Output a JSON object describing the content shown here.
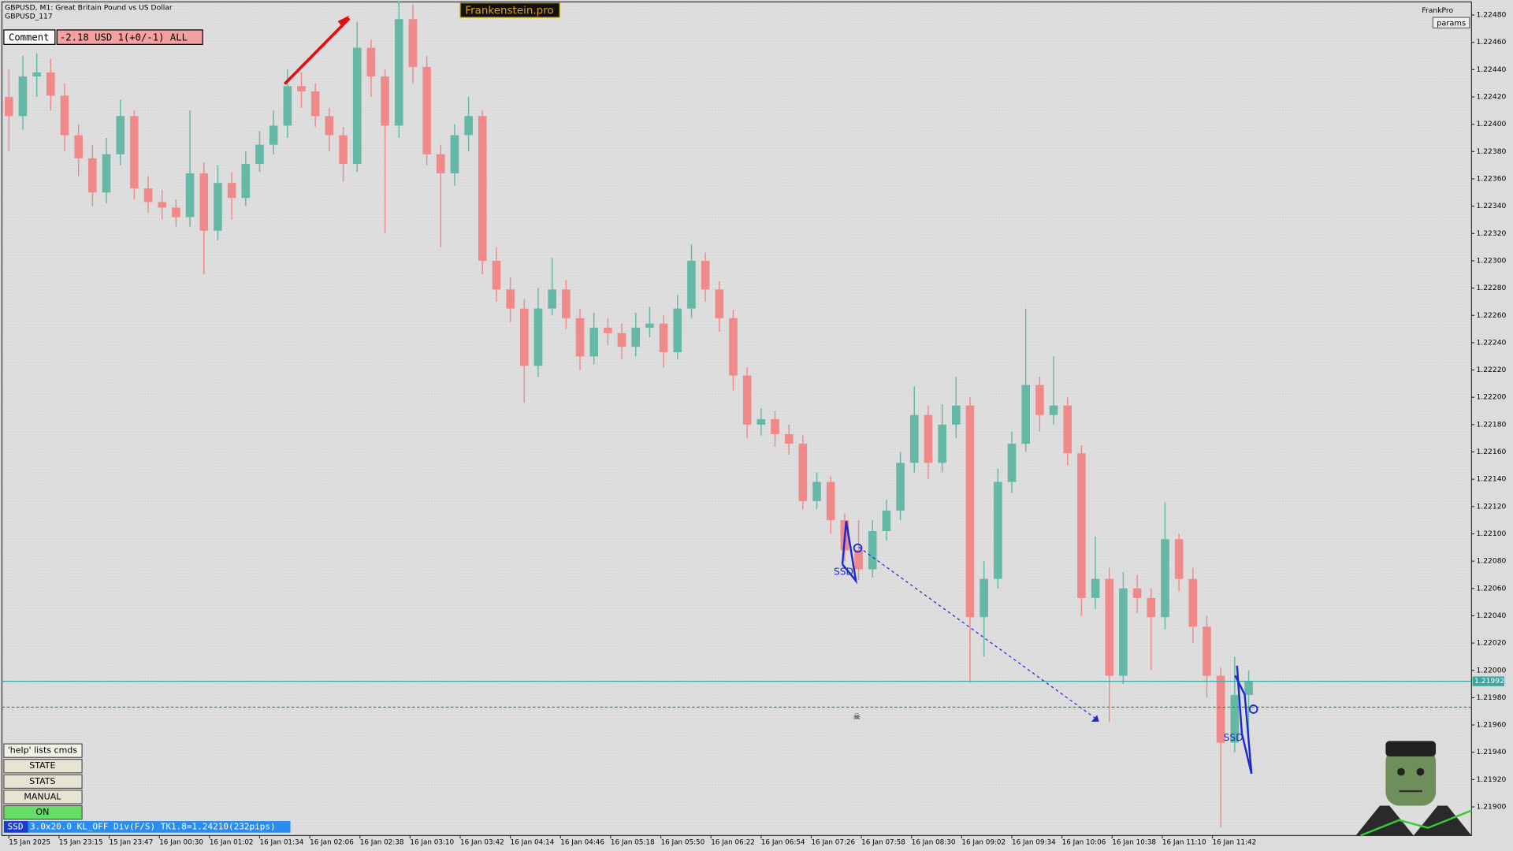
{
  "chart_data": {
    "type": "candlestick",
    "up_color": "#66b8a6",
    "down_color": "#f08a8a",
    "grid": false,
    "ylim": [
      1.21879,
      1.22491
    ],
    "yticks": [
      {
        "value": 1.219,
        "label": "1.21900"
      },
      {
        "value": 1.2192,
        "label": "1.21920"
      },
      {
        "value": 1.2194,
        "label": "1.21940"
      },
      {
        "value": 1.2196,
        "label": "1.21960"
      },
      {
        "value": 1.2198,
        "label": "1.21980"
      },
      {
        "value": 1.22,
        "label": "1.22000"
      },
      {
        "value": 1.2202,
        "label": "1.22020"
      },
      {
        "value": 1.2204,
        "label": "1.22040"
      },
      {
        "value": 1.2206,
        "label": "1.22060"
      },
      {
        "value": 1.2208,
        "label": "1.22080"
      },
      {
        "value": 1.221,
        "label": "1.22100"
      },
      {
        "value": 1.2212,
        "label": "1.22120"
      },
      {
        "value": 1.2214,
        "label": "1.22140"
      },
      {
        "value": 1.2216,
        "label": "1.22160"
      },
      {
        "value": 1.2218,
        "label": "1.22180"
      },
      {
        "value": 1.222,
        "label": "1.22200"
      },
      {
        "value": 1.2222,
        "label": "1.22220"
      },
      {
        "value": 1.2224,
        "label": "1.22240"
      },
      {
        "value": 1.2226,
        "label": "1.22260"
      },
      {
        "value": 1.2228,
        "label": "1.22280"
      },
      {
        "value": 1.223,
        "label": "1.22300"
      },
      {
        "value": 1.2232,
        "label": "1.22320"
      },
      {
        "value": 1.2234,
        "label": "1.22340"
      },
      {
        "value": 1.2236,
        "label": "1.22360"
      },
      {
        "value": 1.2238,
        "label": "1.22380"
      },
      {
        "value": 1.224,
        "label": "1.22400"
      },
      {
        "value": 1.2242,
        "label": "1.22420"
      },
      {
        "value": 1.2244,
        "label": "1.22440"
      },
      {
        "value": 1.2246,
        "label": "1.22460"
      },
      {
        "value": 1.2248,
        "label": "1.22480"
      }
    ],
    "xlim": [
      -0.5,
      105
    ],
    "xticks": [
      {
        "value": 0,
        "label": "15 Jan 2025"
      },
      {
        "value": 3.6,
        "label": "15 Jan 23:15"
      },
      {
        "value": 7.2,
        "label": "15 Jan 23:47"
      },
      {
        "value": 10.8,
        "label": "16 Jan 00:30"
      },
      {
        "value": 14.4,
        "label": "16 Jan 01:02"
      },
      {
        "value": 18,
        "label": "16 Jan 01:34"
      },
      {
        "value": 21.6,
        "label": "16 Jan 02:06"
      },
      {
        "value": 25.2,
        "label": "16 Jan 02:38"
      },
      {
        "value": 28.8,
        "label": "16 Jan 03:10"
      },
      {
        "value": 32.4,
        "label": "16 Jan 03:42"
      },
      {
        "value": 36,
        "label": "16 Jan 04:14"
      },
      {
        "value": 39.6,
        "label": "16 Jan 04:46"
      },
      {
        "value": 43.2,
        "label": "16 Jan 05:18"
      },
      {
        "value": 46.8,
        "label": "16 Jan 05:50"
      },
      {
        "value": 50.4,
        "label": "16 Jan 06:22"
      },
      {
        "value": 54,
        "label": "16 Jan 06:54"
      },
      {
        "value": 57.6,
        "label": "16 Jan 07:26"
      },
      {
        "value": 61.2,
        "label": "16 Jan 07:58"
      },
      {
        "value": 64.8,
        "label": "16 Jan 08:30"
      },
      {
        "value": 68.4,
        "label": "16 Jan 09:02"
      },
      {
        "value": 72,
        "label": "16 Jan 09:34"
      },
      {
        "value": 75.6,
        "label": "16 Jan 10:06"
      },
      {
        "value": 79.2,
        "label": "16 Jan 10:38"
      },
      {
        "value": 82.8,
        "label": "16 Jan 11:10"
      },
      {
        "value": 86.4,
        "label": "16 Jan 11:42"
      }
    ],
    "open": [
      1.2242,
      1.22406,
      1.22435,
      1.22438,
      1.22421,
      1.22392,
      1.22375,
      1.2235,
      1.22378,
      1.22406,
      1.22353,
      1.22343,
      1.22339,
      1.22332,
      1.22364,
      1.22322,
      1.22357,
      1.22346,
      1.22371,
      1.22385,
      1.22399,
      1.22428,
      1.22424,
      1.22406,
      1.22392,
      1.22371,
      1.22456,
      1.22435,
      1.22399,
      1.22477,
      1.22442,
      1.22378,
      1.22364,
      1.22392,
      1.22406,
      1.223,
      1.22279,
      1.22265,
      1.22223,
      1.22265,
      1.22279,
      1.22258,
      1.2223,
      1.22251,
      1.22247,
      1.22237,
      1.22251,
      1.22254,
      1.22233,
      1.22265,
      1.223,
      1.22279,
      1.22258,
      1.22216,
      1.2218,
      1.22184,
      1.22173,
      1.22166,
      1.22124,
      1.22138,
      1.2211,
      1.22088,
      1.22074,
      1.22102,
      1.22117,
      1.22152,
      1.22187,
      1.22152,
      1.2218,
      1.22194,
      1.22039,
      1.22067,
      1.22138,
      1.22166,
      1.22209,
      1.22187,
      1.22194,
      1.22159,
      1.22053,
      1.22067,
      1.21996,
      1.2206,
      1.22053,
      1.22039,
      1.22096,
      1.22067,
      1.22032,
      1.21996,
      1.21947,
      1.21982
    ],
    "high": [
      1.2244,
      1.2245,
      1.22452,
      1.22448,
      1.2243,
      1.224,
      1.22385,
      1.2239,
      1.22418,
      1.2241,
      1.22362,
      1.22352,
      1.22345,
      1.2241,
      1.22372,
      1.2237,
      1.22365,
      1.2238,
      1.22395,
      1.2241,
      1.2244,
      1.22438,
      1.2243,
      1.22412,
      1.22398,
      1.22475,
      1.22462,
      1.2244,
      1.2249,
      1.22488,
      1.2245,
      1.22385,
      1.224,
      1.2242,
      1.2241,
      1.2231,
      1.22288,
      1.22272,
      1.2228,
      1.22302,
      1.22286,
      1.22265,
      1.22262,
      1.22258,
      1.22254,
      1.22262,
      1.22266,
      1.2226,
      1.22275,
      1.22312,
      1.22306,
      1.22285,
      1.22264,
      1.22222,
      1.22192,
      1.2219,
      1.2218,
      1.22172,
      1.22145,
      1.22142,
      1.22115,
      1.2211,
      1.2211,
      1.22125,
      1.2216,
      1.22208,
      1.22194,
      1.22195,
      1.22215,
      1.222,
      1.2208,
      1.22148,
      1.22175,
      1.22265,
      1.22215,
      1.2223,
      1.222,
      1.22165,
      1.22098,
      1.22075,
      1.22072,
      1.2207,
      1.2206,
      1.22123,
      1.221,
      1.22075,
      1.2204,
      1.22002,
      1.2201,
      1.22
    ],
    "low": [
      1.2238,
      1.22396,
      1.2242,
      1.2241,
      1.2238,
      1.22362,
      1.2234,
      1.22342,
      1.2237,
      1.22345,
      1.22335,
      1.2233,
      1.22325,
      1.22325,
      1.2229,
      1.22315,
      1.2233,
      1.2234,
      1.22365,
      1.22378,
      1.2239,
      1.22412,
      1.22398,
      1.2238,
      1.22358,
      1.22365,
      1.2242,
      1.2232,
      1.2239,
      1.2243,
      1.2237,
      1.2231,
      1.22355,
      1.2238,
      1.2229,
      1.2227,
      1.22255,
      1.22196,
      1.22215,
      1.2226,
      1.2225,
      1.2222,
      1.22224,
      1.22238,
      1.22228,
      1.2223,
      1.22244,
      1.22222,
      1.22228,
      1.22258,
      1.2227,
      1.22248,
      1.22205,
      1.2217,
      1.22172,
      1.22164,
      1.22158,
      1.22118,
      1.22118,
      1.221,
      1.2208,
      1.22066,
      1.22068,
      1.22095,
      1.2211,
      1.22145,
      1.2214,
      1.22145,
      1.2217,
      1.21991,
      1.2201,
      1.2206,
      1.2213,
      1.2216,
      1.22175,
      1.2218,
      1.2215,
      1.2204,
      1.22045,
      1.21962,
      1.2199,
      1.22042,
      1.22,
      1.2203,
      1.22058,
      1.2202,
      1.2198,
      1.21885,
      1.2194,
      1.2195
    ],
    "close": [
      1.22406,
      1.22435,
      1.22438,
      1.22421,
      1.22392,
      1.22375,
      1.2235,
      1.22378,
      1.22406,
      1.22353,
      1.22343,
      1.22339,
      1.22332,
      1.22364,
      1.22322,
      1.22357,
      1.22346,
      1.22371,
      1.22385,
      1.22399,
      1.22428,
      1.22424,
      1.22406,
      1.22392,
      1.22371,
      1.22456,
      1.22435,
      1.22399,
      1.22477,
      1.22442,
      1.22378,
      1.22364,
      1.22392,
      1.22406,
      1.223,
      1.22279,
      1.22265,
      1.22223,
      1.22265,
      1.22279,
      1.22258,
      1.2223,
      1.22251,
      1.22247,
      1.22237,
      1.22251,
      1.22254,
      1.22233,
      1.22265,
      1.223,
      1.22279,
      1.22258,
      1.22216,
      1.2218,
      1.22184,
      1.22173,
      1.22166,
      1.22124,
      1.22138,
      1.2211,
      1.22088,
      1.22074,
      1.22102,
      1.22117,
      1.22152,
      1.22187,
      1.22152,
      1.2218,
      1.22194,
      1.22039,
      1.22067,
      1.22138,
      1.22166,
      1.22209,
      1.22187,
      1.22194,
      1.22159,
      1.22053,
      1.22067,
      1.21996,
      1.2206,
      1.22053,
      1.22039,
      1.22096,
      1.22067,
      1.22032,
      1.21996,
      1.21947,
      1.21982,
      1.21992
    ],
    "price_line": 1.21992,
    "level_line": 1.21973
  },
  "header": {
    "symbol": "GBPUSD, M1:  Great Britain Pound vs US Dollar",
    "account": "GBPUSD_117",
    "brand": "Frankenstein.pro",
    "user": "FrankPro",
    "params": "params"
  },
  "comment": {
    "label": "Comment",
    "text": "-2.18 USD 1(+0/-1) ALL"
  },
  "buttons": [
    "'help' lists cmds",
    "STATE",
    "STATS",
    "MANUAL",
    "ON"
  ],
  "status": {
    "tag": "SSD",
    "text": "3.0x20.0 KL_OFF Div(F/S) TK1.8=1.24210(232pips)"
  },
  "patterns": [
    "SSD",
    "SSD"
  ]
}
